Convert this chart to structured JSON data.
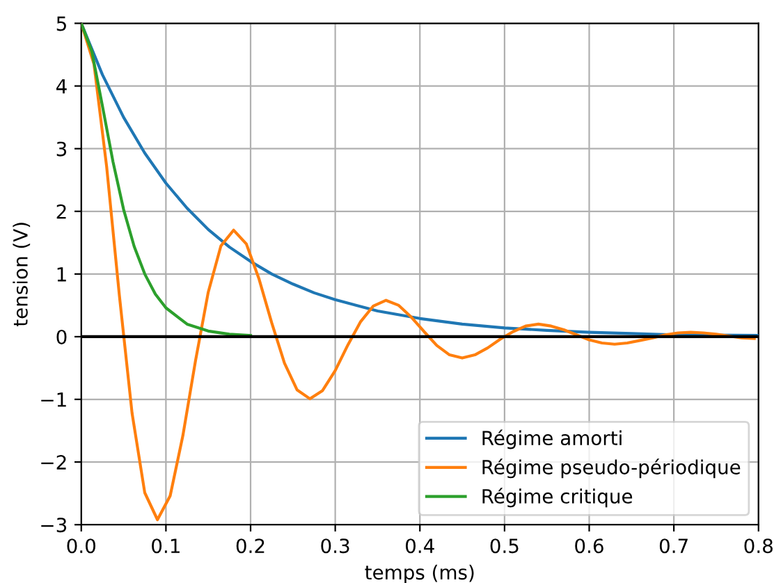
{
  "chart_data": {
    "type": "line",
    "xlabel": "temps (ms)",
    "ylabel": "tension (V)",
    "xlim": [
      0.0,
      0.8
    ],
    "ylim": [
      -3,
      5
    ],
    "xticks": [
      {
        "value": 0.0,
        "label": "0.0"
      },
      {
        "value": 0.1,
        "label": "0.1"
      },
      {
        "value": 0.2,
        "label": "0.2"
      },
      {
        "value": 0.3,
        "label": "0.3"
      },
      {
        "value": 0.4,
        "label": "0.4"
      },
      {
        "value": 0.5,
        "label": "0.5"
      },
      {
        "value": 0.6,
        "label": "0.6"
      },
      {
        "value": 0.7,
        "label": "0.7"
      },
      {
        "value": 0.8,
        "label": "0.8"
      }
    ],
    "yticks": [
      {
        "value": -3,
        "label": "−3"
      },
      {
        "value": -2,
        "label": "−2"
      },
      {
        "value": -1,
        "label": "−1"
      },
      0,
      1,
      2,
      3,
      4,
      5
    ],
    "grid": true,
    "legend": "bottom right",
    "ref_lines": [
      {
        "axis": "y",
        "value": 0,
        "color": "#000000"
      }
    ],
    "series": [
      {
        "name": "Régime amorti",
        "color": "#1f77b4",
        "x": [
          0,
          0.025,
          0.05,
          0.075,
          0.1,
          0.125,
          0.15,
          0.175,
          0.2,
          0.225,
          0.25,
          0.275,
          0.3,
          0.35,
          0.4,
          0.45,
          0.5,
          0.55,
          0.6,
          0.65,
          0.7,
          0.8
        ],
        "values": [
          5,
          4.18,
          3.5,
          2.93,
          2.45,
          2.05,
          1.71,
          1.43,
          1.2,
          1.0,
          0.84,
          0.7,
          0.59,
          0.41,
          0.29,
          0.2,
          0.14,
          0.1,
          0.07,
          0.05,
          0.03,
          0.02
        ]
      },
      {
        "name": "Régime pseudo-périodique",
        "color": "#ff7f0e",
        "x": [
          0,
          0.015,
          0.03,
          0.045,
          0.06,
          0.075,
          0.09,
          0.105,
          0.12,
          0.135,
          0.15,
          0.165,
          0.18,
          0.195,
          0.21,
          0.225,
          0.24,
          0.255,
          0.27,
          0.285,
          0.3,
          0.315,
          0.33,
          0.345,
          0.36,
          0.375,
          0.39,
          0.405,
          0.42,
          0.435,
          0.45,
          0.465,
          0.48,
          0.495,
          0.51,
          0.525,
          0.54,
          0.555,
          0.57,
          0.585,
          0.6,
          0.615,
          0.63,
          0.645,
          0.66,
          0.675,
          0.69,
          0.705,
          0.72,
          0.735,
          0.75,
          0.765,
          0.78,
          0.795
        ],
        "values": [
          5,
          4.35,
          2.71,
          0.66,
          -1.22,
          -2.49,
          -2.92,
          -2.54,
          -1.58,
          -0.38,
          0.71,
          1.45,
          1.7,
          1.48,
          0.92,
          0.22,
          -0.42,
          -0.85,
          -0.99,
          -0.86,
          -0.54,
          -0.13,
          0.24,
          0.49,
          0.58,
          0.5,
          0.31,
          0.08,
          -0.14,
          -0.29,
          -0.34,
          -0.29,
          -0.18,
          -0.04,
          0.08,
          0.17,
          0.2,
          0.17,
          0.11,
          0.03,
          -0.05,
          -0.1,
          -0.12,
          -0.1,
          -0.06,
          -0.02,
          0.03,
          0.06,
          0.07,
          0.06,
          0.04,
          0.01,
          -0.02,
          -0.03
        ]
      },
      {
        "name": "Régime critique",
        "color": "#2ca02c",
        "x": [
          0,
          0.0125,
          0.025,
          0.0375,
          0.05,
          0.0625,
          0.075,
          0.0875,
          0.1,
          0.125,
          0.15,
          0.175,
          0.2
        ],
        "values": [
          5,
          4.55,
          3.68,
          2.79,
          2.03,
          1.44,
          1.0,
          0.68,
          0.46,
          0.2,
          0.09,
          0.04,
          0.02
        ]
      }
    ]
  }
}
